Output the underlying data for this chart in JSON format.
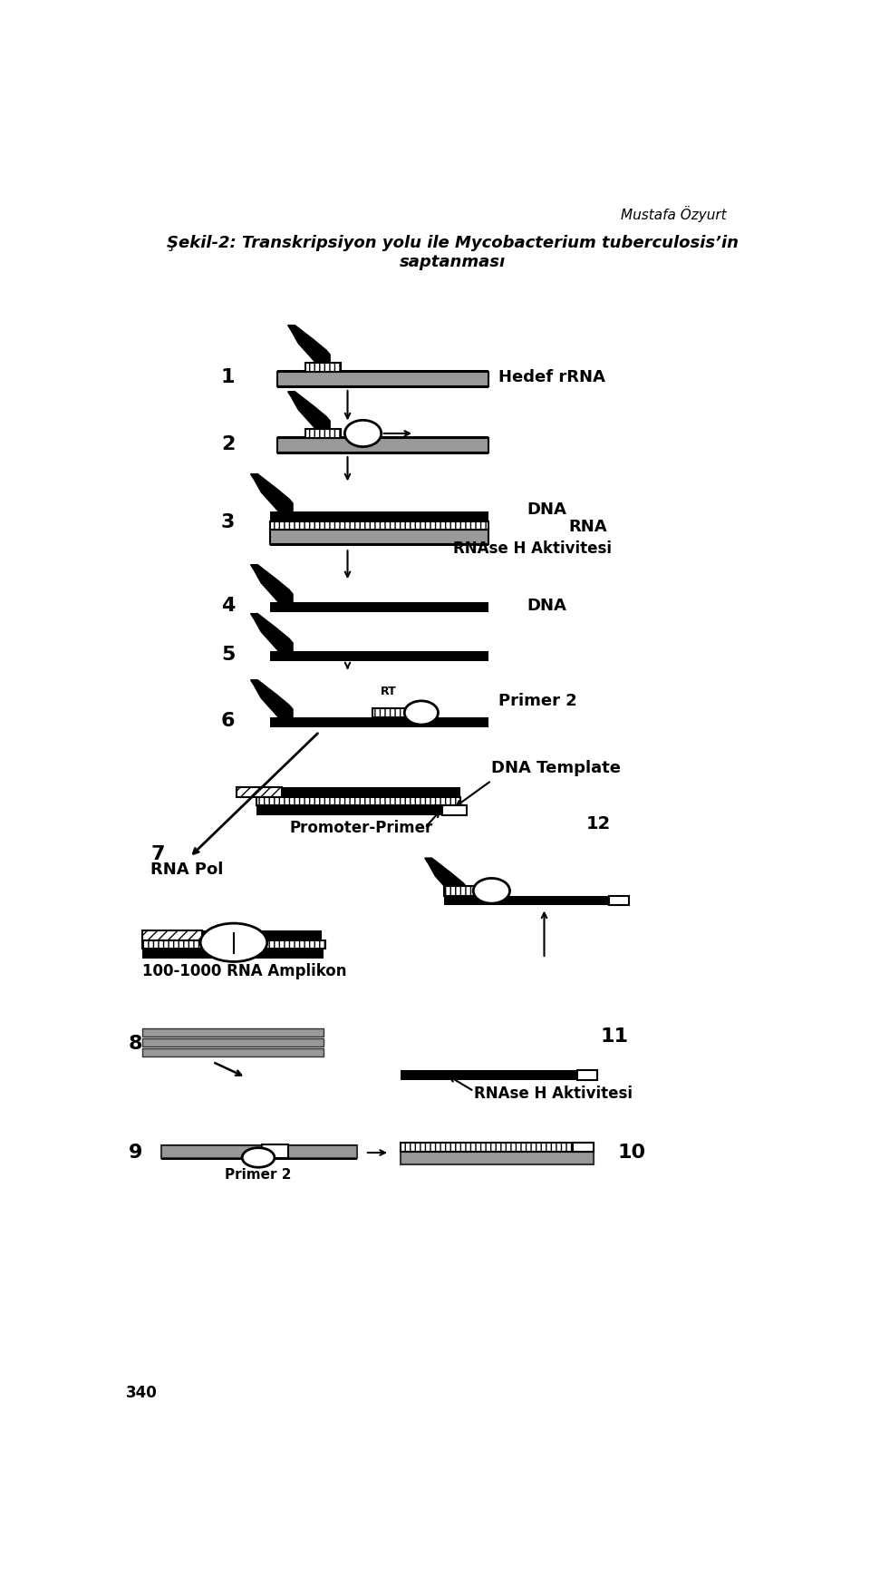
{
  "author": "Mustafa Özyurt",
  "title_line1": "Şekil-2: Transkripsiyon yolu ile Mycobacterium tuberculosis’in",
  "title_line2": "saptanması",
  "bg_color": "#ffffff",
  "black": "#000000",
  "gray": "#999999",
  "dark_gray": "#333333",
  "white": "#ffffff",
  "label_340": "340"
}
